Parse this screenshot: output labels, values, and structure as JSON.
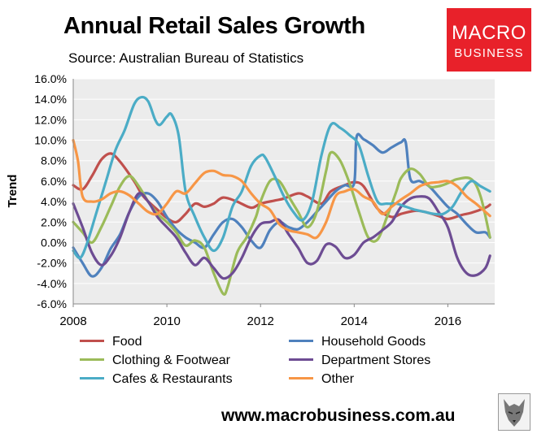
{
  "title": "Annual Retail Sales Growth",
  "subtitle": "Source: Australian Bureau of Statistics",
  "logo": {
    "line1": "MACRO",
    "line2": "BUSINESS"
  },
  "footer_url": "www.macrobusiness.com.au",
  "chart_data": {
    "type": "line",
    "ylabel": "Trend",
    "xlabel": "",
    "xlim": [
      2008,
      2017
    ],
    "ylim": [
      -6,
      16
    ],
    "x_ticks": [
      2008,
      2010,
      2012,
      2014,
      2016
    ],
    "y_ticks": [
      -6,
      -4,
      -2,
      0,
      2,
      4,
      6,
      8,
      10,
      12,
      14,
      16
    ],
    "y_tick_labels": [
      "-6.0%",
      "-4.0%",
      "-2.0%",
      "0.0%",
      "2.0%",
      "4.0%",
      "6.0%",
      "8.0%",
      "10.0%",
      "12.0%",
      "14.0%",
      "16.0%"
    ],
    "grid": "y-major",
    "legend": "bottom",
    "series": [
      {
        "name": "Food",
        "color": "#c0504d",
        "x": [
          2008.0,
          2008.2,
          2008.4,
          2008.6,
          2008.8,
          2009.0,
          2009.3,
          2009.5,
          2009.8,
          2010.0,
          2010.2,
          2010.4,
          2010.6,
          2010.8,
          2011.0,
          2011.2,
          2011.5,
          2011.8,
          2012.0,
          2012.3,
          2012.5,
          2012.8,
          2013.0,
          2013.3,
          2013.5,
          2013.8,
          2014.0,
          2014.2,
          2014.5,
          2014.8,
          2015.0,
          2015.3,
          2015.5,
          2015.8,
          2016.0,
          2016.3,
          2016.5,
          2016.8,
          2016.9
        ],
        "y": [
          5.6,
          5.2,
          6.5,
          8.1,
          8.7,
          7.9,
          6.0,
          4.5,
          3.2,
          2.4,
          2.0,
          2.8,
          3.8,
          3.5,
          3.8,
          4.4,
          4.0,
          3.4,
          3.8,
          4.1,
          4.3,
          4.8,
          4.5,
          3.8,
          5.0,
          5.6,
          5.9,
          5.5,
          3.3,
          2.5,
          2.8,
          3.1,
          3.0,
          2.6,
          2.3,
          2.7,
          2.9,
          3.4,
          3.7
        ]
      },
      {
        "name": "Household Goods",
        "color": "#4f81bd",
        "x": [
          2008.0,
          2008.2,
          2008.4,
          2008.6,
          2008.8,
          2009.0,
          2009.2,
          2009.4,
          2009.6,
          2009.8,
          2010.0,
          2010.2,
          2010.4,
          2010.6,
          2010.8,
          2011.0,
          2011.2,
          2011.4,
          2011.6,
          2011.8,
          2012.0,
          2012.2,
          2012.4,
          2012.6,
          2012.8,
          2013.0,
          2013.2,
          2013.4,
          2013.6,
          2013.8,
          2014.0,
          2014.05,
          2014.2,
          2014.4,
          2014.6,
          2014.8,
          2015.0,
          2015.1,
          2015.2,
          2015.4,
          2015.6,
          2015.8,
          2016.0,
          2016.2,
          2016.4,
          2016.6,
          2016.8,
          2016.9
        ],
        "y": [
          -0.5,
          -2.0,
          -3.3,
          -2.5,
          -0.6,
          0.8,
          3.0,
          4.5,
          4.8,
          4.0,
          2.5,
          1.3,
          0.5,
          0.0,
          -0.5,
          0.8,
          2.0,
          2.3,
          1.5,
          0.2,
          -0.5,
          1.2,
          2.0,
          1.5,
          1.3,
          2.0,
          3.0,
          4.0,
          5.0,
          5.6,
          5.8,
          10.3,
          10.1,
          9.5,
          8.8,
          9.3,
          9.8,
          9.8,
          6.2,
          6.0,
          5.5,
          4.5,
          3.5,
          2.8,
          1.8,
          1.0,
          1.0,
          0.5
        ]
      },
      {
        "name": "Clothing & Footwear",
        "color": "#9bbb59",
        "x": [
          2008.0,
          2008.2,
          2008.4,
          2008.6,
          2008.8,
          2009.0,
          2009.2,
          2009.4,
          2009.6,
          2009.8,
          2010.0,
          2010.2,
          2010.4,
          2010.6,
          2010.8,
          2011.0,
          2011.2,
          2011.3,
          2011.5,
          2011.7,
          2011.9,
          2012.0,
          2012.2,
          2012.4,
          2012.6,
          2012.8,
          2013.0,
          2013.2,
          2013.4,
          2013.5,
          2013.7,
          2013.9,
          2014.1,
          2014.3,
          2014.5,
          2014.7,
          2014.9,
          2015.0,
          2015.2,
          2015.4,
          2015.6,
          2015.8,
          2016.0,
          2016.2,
          2016.5,
          2016.7,
          2016.9
        ],
        "y": [
          2.0,
          1.0,
          0.0,
          1.5,
          3.5,
          5.5,
          6.5,
          5.5,
          4.0,
          2.8,
          2.0,
          1.0,
          -0.3,
          0.2,
          -0.5,
          -3.0,
          -5.0,
          -4.3,
          -1.0,
          0.5,
          2.5,
          4.0,
          6.0,
          6.0,
          4.5,
          3.0,
          1.5,
          3.0,
          7.0,
          8.8,
          8.0,
          5.8,
          3.0,
          0.5,
          0.3,
          2.5,
          5.0,
          6.3,
          7.2,
          6.7,
          5.5,
          5.5,
          5.8,
          6.2,
          6.2,
          4.5,
          0.5
        ]
      },
      {
        "name": "Department Stores",
        "color": "#6d4c93",
        "x": [
          2008.0,
          2008.2,
          2008.4,
          2008.6,
          2008.8,
          2009.0,
          2009.2,
          2009.4,
          2009.6,
          2009.8,
          2010.0,
          2010.2,
          2010.4,
          2010.6,
          2010.8,
          2011.0,
          2011.2,
          2011.4,
          2011.6,
          2011.8,
          2012.0,
          2012.2,
          2012.4,
          2012.6,
          2012.8,
          2013.0,
          2013.2,
          2013.4,
          2013.6,
          2013.8,
          2014.0,
          2014.2,
          2014.4,
          2014.6,
          2014.8,
          2015.0,
          2015.2,
          2015.4,
          2015.6,
          2015.8,
          2016.0,
          2016.2,
          2016.4,
          2016.6,
          2016.8,
          2016.9
        ],
        "y": [
          3.8,
          1.5,
          -1.0,
          -2.2,
          -1.3,
          0.5,
          3.0,
          4.8,
          4.0,
          2.5,
          1.5,
          0.5,
          -1.0,
          -2.2,
          -1.5,
          -2.5,
          -3.5,
          -3.0,
          -1.5,
          0.5,
          1.8,
          2.0,
          2.2,
          0.8,
          -0.5,
          -2.0,
          -1.8,
          -0.2,
          -0.4,
          -1.5,
          -1.2,
          0.0,
          0.5,
          1.2,
          2.0,
          3.5,
          4.3,
          4.5,
          4.3,
          3.0,
          1.5,
          -1.5,
          -3.0,
          -3.2,
          -2.5,
          -1.3
        ]
      },
      {
        "name": "Cafes & Restaurants",
        "color": "#4bacc6",
        "x": [
          2008.0,
          2008.15,
          2008.3,
          2008.5,
          2008.7,
          2008.9,
          2009.1,
          2009.3,
          2009.45,
          2009.6,
          2009.75,
          2009.85,
          2010.0,
          2010.1,
          2010.25,
          2010.4,
          2010.6,
          2010.8,
          2011.0,
          2011.2,
          2011.4,
          2011.6,
          2011.8,
          2012.0,
          2012.1,
          2012.3,
          2012.5,
          2012.7,
          2012.9,
          2013.1,
          2013.3,
          2013.5,
          2013.7,
          2013.9,
          2014.1,
          2014.3,
          2014.5,
          2014.7,
          2014.9,
          2015.1,
          2015.3,
          2015.5,
          2015.7,
          2015.9,
          2016.1,
          2016.3,
          2016.5,
          2016.7,
          2016.9
        ],
        "y": [
          -0.8,
          -1.5,
          0.0,
          3.0,
          6.0,
          9.0,
          11.0,
          13.5,
          14.2,
          13.8,
          12.0,
          11.5,
          12.3,
          12.5,
          10.5,
          5.0,
          2.5,
          0.5,
          -0.8,
          0.5,
          3.5,
          5.0,
          7.5,
          8.5,
          8.3,
          6.5,
          4.5,
          3.0,
          2.2,
          4.0,
          8.5,
          11.5,
          11.2,
          10.5,
          9.5,
          6.5,
          4.0,
          3.8,
          3.8,
          3.5,
          3.2,
          3.0,
          2.8,
          2.8,
          3.5,
          5.0,
          6.0,
          5.5,
          5.0
        ]
      },
      {
        "name": "Other",
        "color": "#f79646",
        "x": [
          2008.0,
          2008.1,
          2008.2,
          2008.4,
          2008.6,
          2008.8,
          2009.0,
          2009.2,
          2009.4,
          2009.6,
          2009.8,
          2010.0,
          2010.2,
          2010.4,
          2010.6,
          2010.8,
          2011.0,
          2011.2,
          2011.4,
          2011.6,
          2011.8,
          2012.0,
          2012.2,
          2012.4,
          2012.6,
          2012.8,
          2013.0,
          2013.2,
          2013.4,
          2013.6,
          2013.8,
          2014.0,
          2014.2,
          2014.4,
          2014.6,
          2014.8,
          2015.0,
          2015.2,
          2015.4,
          2015.6,
          2015.8,
          2016.0,
          2016.2,
          2016.4,
          2016.6,
          2016.8,
          2016.9
        ],
        "y": [
          10.0,
          8.0,
          4.5,
          4.0,
          4.2,
          4.8,
          5.0,
          4.6,
          3.8,
          3.0,
          2.8,
          3.8,
          5.0,
          4.8,
          5.8,
          6.8,
          7.0,
          6.6,
          6.5,
          6.0,
          4.8,
          3.8,
          3.2,
          1.8,
          1.2,
          1.0,
          0.8,
          0.5,
          2.0,
          4.5,
          5.0,
          5.2,
          4.5,
          4.0,
          2.8,
          3.5,
          4.2,
          4.8,
          5.5,
          5.8,
          5.9,
          6.0,
          5.5,
          4.5,
          3.8,
          3.0,
          2.6
        ]
      }
    ]
  }
}
